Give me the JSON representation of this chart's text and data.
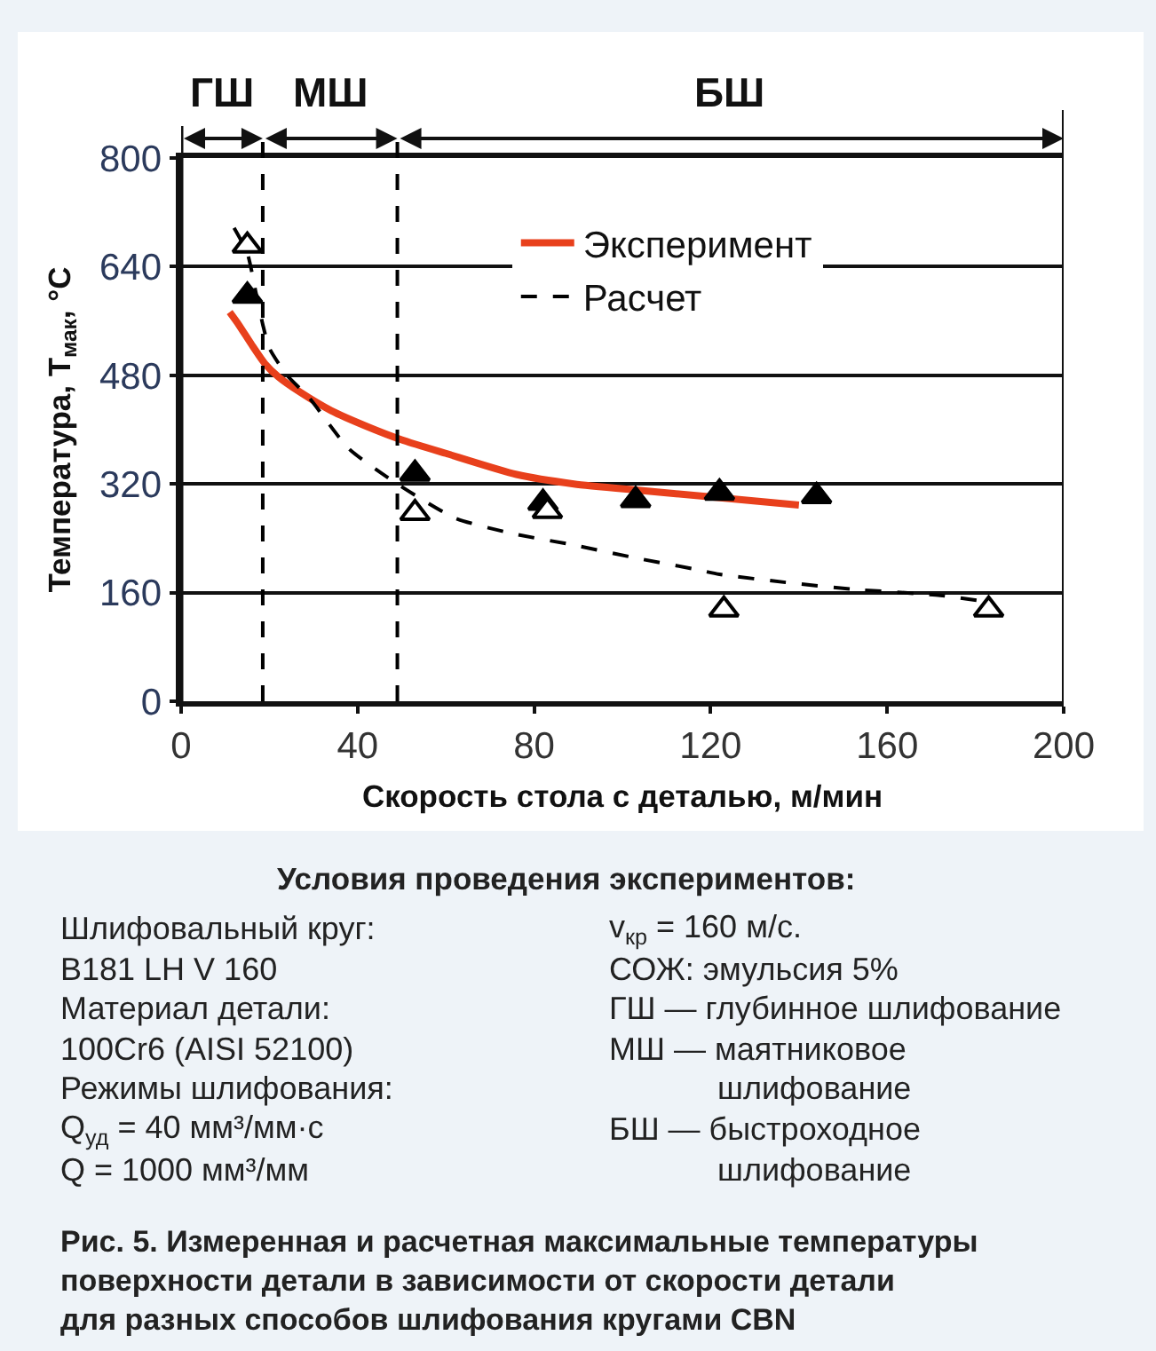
{
  "chart_data": {
    "type": "line",
    "xlabel": "Скорость стола с деталью, м/мин",
    "ylabel": "Температура, T$_{мак}$, °C",
    "xlim": [
      0,
      200
    ],
    "xticks": [
      0,
      40,
      80,
      120,
      160,
      200
    ],
    "ylim": [
      0,
      800
    ],
    "yticks": [
      0,
      160,
      320,
      480,
      640,
      800
    ],
    "grid": "y",
    "legend": "top right",
    "series": [
      {
        "name": "Эксперимент",
        "color": "#e8401c",
        "line_style": "solid",
        "marker": "none",
        "x": [
          11,
          13,
          16,
          19,
          22,
          27,
          34,
          42,
          50,
          60,
          76,
          89,
          103,
          120,
          140
        ],
        "values": [
          573,
          555,
          525,
          497,
          478,
          455,
          428,
          405,
          385,
          365,
          334,
          320,
          311,
          301,
          289
        ]
      },
      {
        "name": "Расчет",
        "color": "#000000",
        "line_style": "dashed",
        "marker": "none",
        "x": [
          12,
          15,
          17,
          18.5,
          20,
          24,
          29,
          38,
          49,
          62,
          75,
          89,
          103,
          116,
          122,
          137,
          152,
          172,
          181
        ],
        "values": [
          697,
          660,
          600,
          555,
          520,
          480,
          447,
          372,
          320,
          270,
          247,
          230,
          211,
          195,
          187,
          175,
          165,
          156,
          148
        ]
      },
      {
        "type": "scatter",
        "color": "#000000",
        "marker": "triangle",
        "x": [
          15,
          53,
          82,
          103,
          122,
          144
        ],
        "values": [
          597,
          335,
          292,
          296,
          307,
          302
        ]
      },
      {
        "type": "scatter",
        "color": "#ffffff",
        "marker": "triangle",
        "x": [
          15,
          53,
          83,
          123,
          183
        ],
        "values": [
          671,
          277,
          280,
          135,
          135
        ]
      }
    ],
    "ref_lines": [
      {
        "axis": "x",
        "value": 18.5,
        "line_style": "dashed",
        "color": "#000000"
      },
      {
        "axis": "x",
        "value": 49,
        "line_style": "dashed",
        "color": "#000000"
      }
    ],
    "annotations": [
      "ГШ",
      "МШ",
      "БШ",
      "Условия проведения экспериментов:",
      "Шлифовальный круг:\nB181 LH V 160\nМатериал детали:\n100Cr6 (AISI 52100)\nРежимы шлифования:\nQ$_{уд}$ = 40 мм³/мм·с\nQ = 1000 мм³/мм",
      "v$_{кр}$ = 160 м/с.",
      "СОЖ: эмульсия 5%",
      "ГШ — глубинное шлифование",
      "МШ — маятниковое\nшлифование",
      "БШ — быстроходное\nшлифование",
      "Рис. 5. Измеренная и расчетная максимальные температуры\nповерхности детали в зависимости от скорости детали\nдля разных способов шлифования кругами CBN"
    ]
  }
}
